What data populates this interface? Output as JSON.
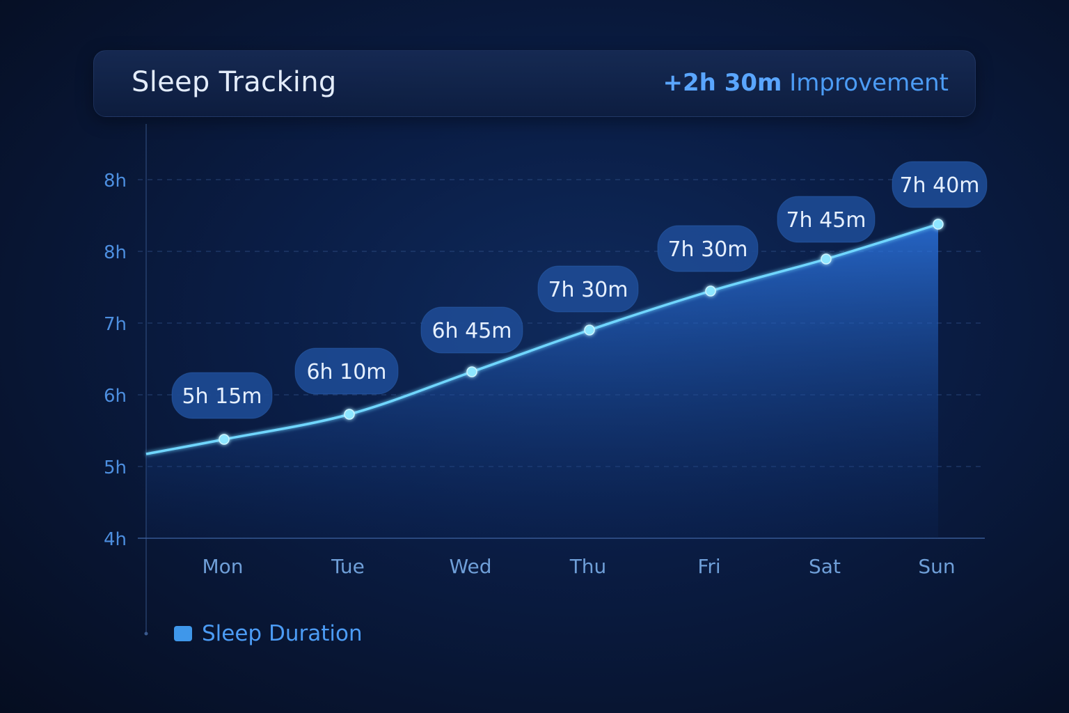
{
  "header": {
    "title": "Sleep Tracking",
    "improvement_value": "+2h 30m",
    "improvement_word": "Improvement"
  },
  "colors": {
    "accent": "#4c9cf5",
    "line": "#6fd6ff",
    "label_bg": "#1d4a93"
  },
  "chart_data": {
    "type": "area",
    "title": "Sleep Tracking",
    "categories": [
      "Mon",
      "Tue",
      "Wed",
      "Thu",
      "Fri",
      "Sat",
      "Sun"
    ],
    "y_tick_labels": [
      "4h",
      "5h",
      "6h",
      "7h",
      "8h",
      "8h"
    ],
    "series": [
      {
        "name": "Sleep Duration",
        "values": [
          5.25,
          6.17,
          6.75,
          7.5,
          7.5,
          7.75,
          7.67
        ],
        "labels": [
          "5h 15m",
          "6h 10m",
          "6h 45m",
          "7h 30m",
          "7h 30m",
          "7h 45m",
          "7h 40m"
        ]
      }
    ],
    "legend": "bottom-left",
    "grid": true
  }
}
